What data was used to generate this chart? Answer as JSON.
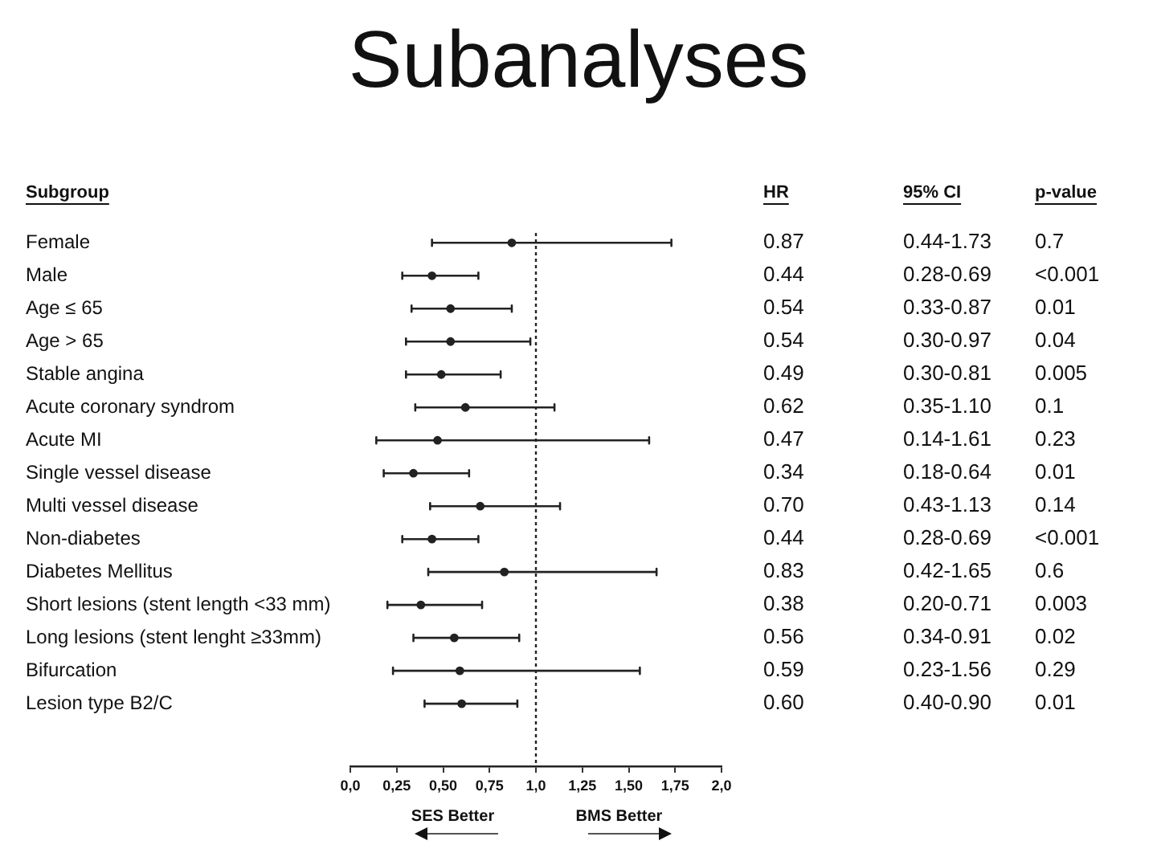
{
  "chart_data": {
    "type": "scatter",
    "orientation": "horizontal",
    "title": "Subanalyses",
    "categories": [
      "Female",
      "Male",
      "Age ≤ 65",
      "Age > 65",
      "Stable angina",
      "Acute coronary syndrom",
      "Acute MI",
      "Single vessel disease",
      "Multi vessel disease",
      "Non-diabetes",
      "Diabetes Mellitus",
      "Short lesions (stent length <33 mm)",
      "Long lesions (stent lenght ≥33mm)",
      "Bifurcation",
      "Lesion type B2/C"
    ],
    "values": [
      0.87,
      0.44,
      0.54,
      0.54,
      0.49,
      0.62,
      0.47,
      0.34,
      0.7,
      0.44,
      0.83,
      0.38,
      0.56,
      0.59,
      0.6
    ],
    "errors": [
      [
        0.44,
        1.73
      ],
      [
        0.28,
        0.69
      ],
      [
        0.33,
        0.87
      ],
      [
        0.3,
        0.97
      ],
      [
        0.3,
        0.81
      ],
      [
        0.35,
        1.1
      ],
      [
        0.14,
        1.61
      ],
      [
        0.18,
        0.64
      ],
      [
        0.43,
        1.13
      ],
      [
        0.28,
        0.69
      ],
      [
        0.42,
        1.65
      ],
      [
        0.2,
        0.71
      ],
      [
        0.34,
        0.91
      ],
      [
        0.23,
        1.56
      ],
      [
        0.4,
        0.9
      ]
    ],
    "value_labels": [
      "0.87",
      "0.44",
      "0.54",
      "0.54",
      "0.49",
      "0.62",
      "0.47",
      "0.34",
      "0.70",
      "0.44",
      "0.83",
      "0.38",
      "0.56",
      "0.59",
      "0.60"
    ],
    "color": "#222222",
    "marker": "circle",
    "xlim": [
      0,
      2
    ],
    "xticks": [
      {
        "value": 0,
        "label": "0,0"
      },
      {
        "value": 0.25,
        "label": "0,25"
      },
      {
        "value": 0.5,
        "label": "0,50"
      },
      {
        "value": 0.75,
        "label": "0,75"
      },
      {
        "value": 1,
        "label": "1,0"
      },
      {
        "value": 1.25,
        "label": "1,25"
      },
      {
        "value": 1.5,
        "label": "1,50"
      },
      {
        "value": 1.75,
        "label": "1,75"
      },
      {
        "value": 2,
        "label": "2,0"
      }
    ],
    "ref_lines": [
      {
        "axis": "x",
        "value": 1,
        "line_style": "dotted"
      }
    ],
    "annotations": [
      "Subgroup",
      "HR",
      "95% CI",
      "p-value",
      "SES Better",
      "BMS Better",
      "0.44-1.73",
      "0.28-0.69",
      "0.33-0.87",
      "0.30-0.97",
      "0.30-0.81",
      "0.35-1.10",
      "0.14-1.61",
      "0.18-0.64",
      "0.43-1.13",
      "0.28-0.69",
      "0.42-1.65",
      "0.20-0.71",
      "0.34-0.91",
      "0.23-1.56",
      "0.40-0.90",
      "0.7",
      "<0.001",
      "0.01",
      "0.04",
      "0.005",
      "0.1",
      "0.23",
      "0.01",
      "0.14",
      "<0.001",
      "0.6",
      "0.003",
      "0.02",
      "0.29",
      "0.01"
    ]
  }
}
